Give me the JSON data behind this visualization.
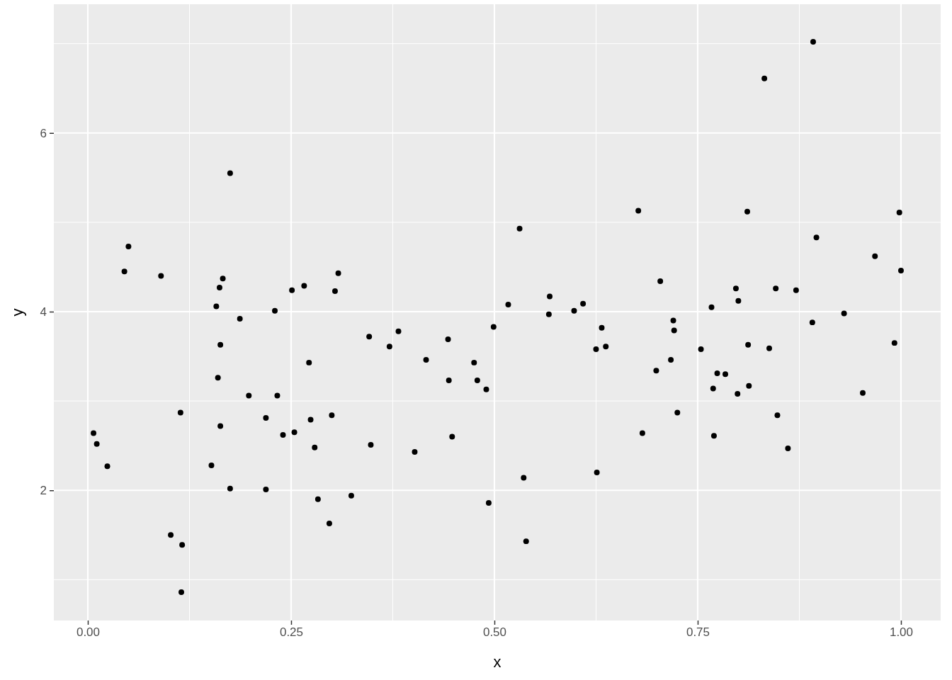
{
  "chart_data": {
    "type": "scatter",
    "xlabel": "x",
    "ylabel": "y",
    "xlim": [
      -0.0418,
      1.0488
    ],
    "ylim": [
      0.543,
      7.441
    ],
    "xticks": [
      {
        "value": 0,
        "label": "0.00"
      },
      {
        "value": 0.25,
        "label": "0.25"
      },
      {
        "value": 0.5,
        "label": "0.50"
      },
      {
        "value": 0.75,
        "label": "0.75"
      },
      {
        "value": 1,
        "label": "1.00"
      }
    ],
    "yticks": [
      2,
      4,
      6
    ],
    "grid": true,
    "marker": "circle",
    "series": [
      {
        "color": "#000000",
        "x": [
          0.007,
          0.011,
          0.024,
          0.045,
          0.05,
          0.09,
          0.102,
          0.114,
          0.116,
          0.115,
          0.152,
          0.158,
          0.16,
          0.162,
          0.163,
          0.163,
          0.166,
          0.175,
          0.175,
          0.187,
          0.198,
          0.219,
          0.219,
          0.23,
          0.233,
          0.24,
          0.251,
          0.254,
          0.266,
          0.272,
          0.274,
          0.279,
          0.283,
          0.297,
          0.3,
          0.304,
          0.308,
          0.324,
          0.346,
          0.348,
          0.371,
          0.382,
          0.402,
          0.416,
          0.443,
          0.444,
          0.448,
          0.475,
          0.479,
          0.49,
          0.493,
          0.499,
          0.517,
          0.531,
          0.536,
          0.539,
          0.567,
          0.568,
          0.598,
          0.609,
          0.625,
          0.626,
          0.632,
          0.637,
          0.677,
          0.682,
          0.699,
          0.704,
          0.717,
          0.72,
          0.721,
          0.725,
          0.754,
          0.767,
          0.769,
          0.77,
          0.774,
          0.784,
          0.797,
          0.799,
          0.8,
          0.811,
          0.812,
          0.813,
          0.832,
          0.838,
          0.846,
          0.848,
          0.861,
          0.871,
          0.891,
          0.892,
          0.896,
          0.93,
          0.953,
          0.968,
          0.992,
          0.998,
          1.0
        ],
        "values": [
          2.64,
          2.52,
          2.27,
          4.45,
          4.73,
          4.4,
          1.5,
          2.87,
          1.39,
          0.86,
          2.28,
          4.06,
          3.26,
          4.27,
          3.63,
          2.72,
          4.37,
          5.55,
          2.02,
          3.92,
          3.06,
          2.81,
          2.01,
          4.01,
          3.06,
          2.62,
          4.24,
          2.65,
          4.29,
          3.43,
          2.79,
          2.48,
          1.9,
          1.63,
          2.84,
          4.23,
          4.43,
          1.94,
          3.72,
          2.51,
          3.61,
          3.78,
          2.43,
          3.46,
          3.69,
          3.23,
          2.6,
          3.43,
          3.23,
          3.13,
          1.86,
          3.83,
          4.08,
          4.93,
          2.14,
          1.43,
          3.97,
          4.17,
          4.01,
          4.09,
          3.58,
          2.2,
          3.82,
          3.61,
          5.13,
          2.64,
          3.34,
          4.34,
          3.46,
          3.9,
          3.79,
          2.87,
          3.58,
          4.05,
          3.14,
          2.61,
          3.31,
          3.3,
          4.26,
          3.08,
          4.12,
          5.12,
          3.63,
          3.17,
          6.61,
          3.59,
          4.26,
          2.84,
          2.47,
          4.24,
          3.88,
          7.02,
          4.83,
          3.98,
          3.09,
          4.62,
          3.65,
          5.11,
          4.46
        ]
      }
    ]
  }
}
